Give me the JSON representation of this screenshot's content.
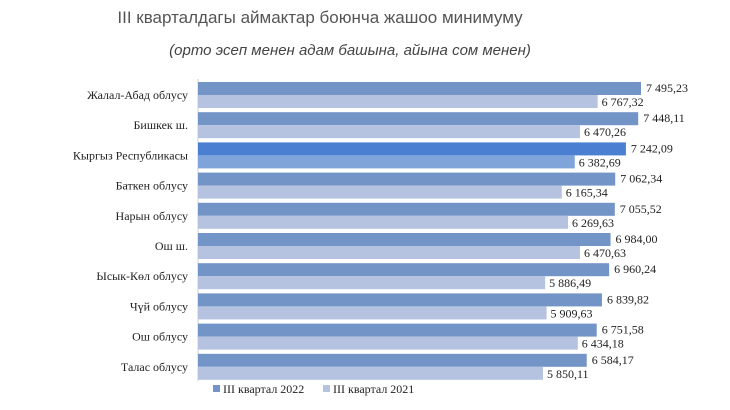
{
  "chart_data": {
    "type": "bar",
    "orientation": "horizontal",
    "title": "III кварталдагы аймактар боюнча жашоо минимуму",
    "subtitle": "(орто эсеп менен адам башына, айына сом менен)",
    "categories": [
      "Жалал-Абад облусу",
      "Бишкек ш.",
      "Кыргыз Республикасы",
      "Баткен облусу",
      "Нарын облусу",
      "Ош ш.",
      "Ысык-Көл облусу",
      "Чүй облусу",
      "Ош облусу",
      "Талас облусу"
    ],
    "series": [
      {
        "name": "III квартал 2022",
        "color": "#7394c6",
        "values": [
          7495.23,
          7448.11,
          7242.09,
          7062.34,
          7055.52,
          6984.0,
          6960.24,
          6839.82,
          6751.58,
          6584.17
        ]
      },
      {
        "name": "III квартал 2021",
        "color": "#b5c3e0",
        "values": [
          6767.32,
          6470.26,
          6382.69,
          6165.34,
          6269.63,
          6470.63,
          5886.49,
          5909.63,
          6434.18,
          5850.11
        ]
      }
    ],
    "value_labels_2022": [
      "7 495,23",
      "7 448,11",
      "7 242,09",
      "7 062,34",
      "7 055,52",
      "6 984,00",
      "6 960,24",
      "6 839,82",
      "6 751,58",
      "6 584,17"
    ],
    "value_labels_2021": [
      "6 767,32",
      "6 470,26",
      "6 382,69",
      "6 165,34",
      "6 269,63",
      "6 470,63",
      "5 886,49",
      "5 909,63",
      "6 434,18",
      "5 850,11"
    ],
    "highlight_category": "Кыргыз Республикасы",
    "highlight_color": "#4a7fd2",
    "highlight_color_2021": "#7ea4da",
    "legend_position": "bottom",
    "grid": false
  }
}
